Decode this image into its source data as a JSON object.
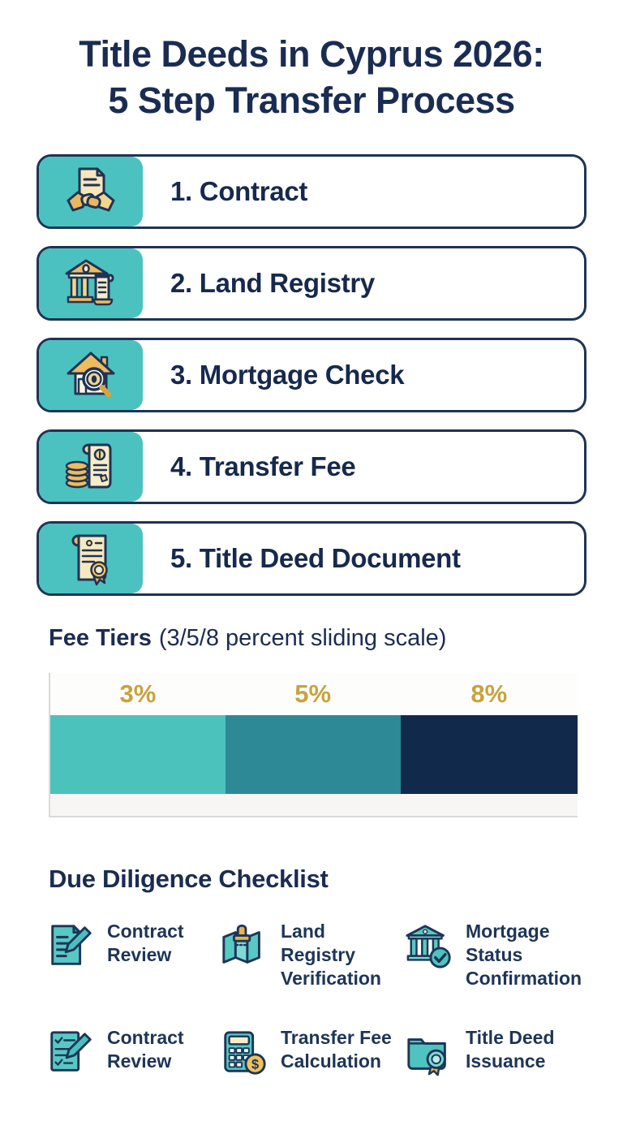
{
  "title": {
    "line1": "Title Deeds in Cyprus 2026:",
    "line2": "5 Step Transfer Process"
  },
  "steps": [
    {
      "label": "1. Contract",
      "icon": "handshake-document-icon"
    },
    {
      "label": "2. Land Registry",
      "icon": "bank-building-scroll-icon"
    },
    {
      "label": "3. Mortgage Check",
      "icon": "house-magnifier-icon"
    },
    {
      "label": "4. Transfer Fee",
      "icon": "coins-scroll-icon"
    },
    {
      "label": "5. Title Deed Document",
      "icon": "scroll-certificate-icon"
    }
  ],
  "fee_tiers": {
    "heading_bold": "Fee Tiers",
    "heading_rest": "(3/5/8 percent sliding scale)"
  },
  "chart_data": {
    "type": "bar",
    "variant": "horizontal-stacked-single-bar",
    "title": "Fee Tiers (3/5/8 percent sliding scale)",
    "categories": [
      "3%",
      "5%",
      "8%"
    ],
    "values": [
      3,
      5,
      8
    ],
    "segments": [
      {
        "label": "3%",
        "value": 3,
        "color": "#4cc2bd",
        "width_pct": 33.2
      },
      {
        "label": "5%",
        "value": 5,
        "color": "#2d8996",
        "width_pct": 33.2
      },
      {
        "label": "8%",
        "value": 8,
        "color": "#112a4c",
        "width_pct": 33.6
      }
    ],
    "label_color": "#c8a23c",
    "axis_color": "#dcdad7",
    "grid": false,
    "legend": "none"
  },
  "checklist": {
    "heading": "Due Diligence Checklist",
    "items": [
      {
        "label": "Contract Review",
        "icon": "document-pencil-icon"
      },
      {
        "label": "Land Registry Verification",
        "icon": "map-stamp-icon"
      },
      {
        "label": "Mortgage Status Confirmation",
        "icon": "bank-checkmark-icon"
      },
      {
        "label": "Contract Review",
        "icon": "checklist-pencil-icon"
      },
      {
        "label": "Transfer Fee Calculation",
        "icon": "calculator-coin-icon"
      },
      {
        "label": "Title Deed Issuance",
        "icon": "folder-rosette-icon"
      }
    ]
  },
  "colors": {
    "navy_text": "#1a2c52",
    "teal_tile": "#4bc2c0",
    "gold_label": "#c8a23c",
    "box_border": "#1e3355"
  }
}
